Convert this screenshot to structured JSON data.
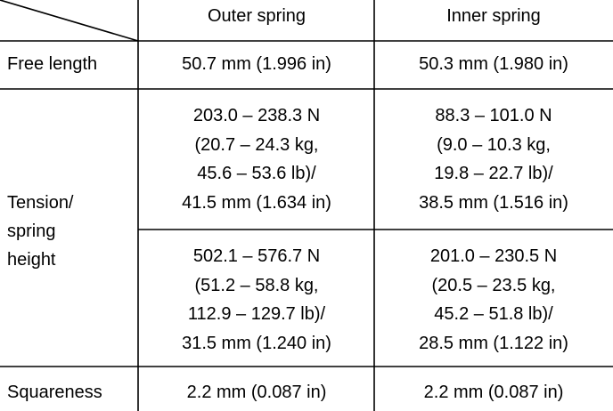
{
  "table": {
    "header": [
      "Outer spring",
      "Inner spring"
    ],
    "rows": [
      {
        "label": [
          "Free length"
        ],
        "cells": [
          [
            "50.7 mm (1.996 in)"
          ],
          [
            "50.3 mm (1.980 in)"
          ]
        ]
      },
      {
        "label": [
          "Tension/",
          "spring",
          "height"
        ],
        "subrows": [
          {
            "cells": [
              [
                "203.0 – 238.3 N",
                "(20.7 – 24.3 kg,",
                "45.6 – 53.6 lb)/",
                "41.5 mm (1.634 in)"
              ],
              [
                "88.3 – 101.0 N",
                "(9.0 – 10.3 kg,",
                "19.8 – 22.7 lb)/",
                "38.5 mm (1.516 in)"
              ]
            ]
          },
          {
            "cells": [
              [
                "502.1 – 576.7 N",
                "(51.2 – 58.8 kg,",
                "112.9 – 129.7 lb)/",
                "31.5 mm (1.240 in)"
              ],
              [
                "201.0 – 230.5 N",
                "(20.5 – 23.5 kg,",
                "45.2 – 51.8 lb)/",
                "28.5 mm (1.122 in)"
              ]
            ]
          }
        ]
      },
      {
        "label": [
          "Squareness"
        ],
        "cells": [
          [
            "2.2 mm (0.087 in)"
          ],
          [
            "2.2 mm (0.087 in)"
          ]
        ]
      }
    ]
  }
}
